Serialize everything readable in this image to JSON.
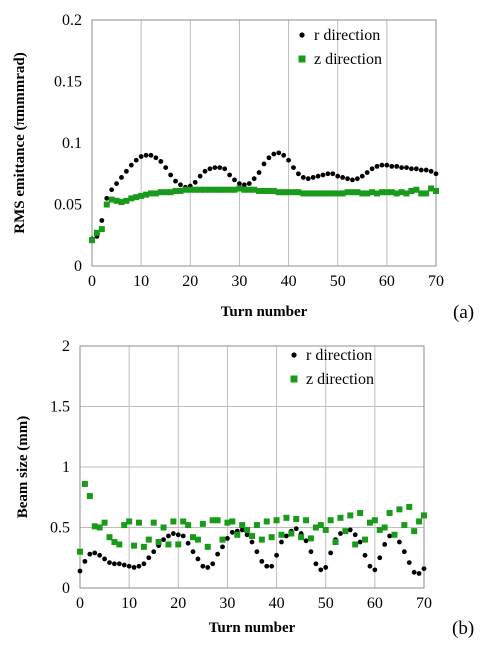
{
  "chart_data": [
    {
      "type": "scatter",
      "panel_label": "(a)",
      "xlabel": "Turn number",
      "ylabel": "RMS emittance (πmmmrad)",
      "xlim": [
        0,
        70
      ],
      "ylim": [
        0,
        0.2
      ],
      "x_ticks": [
        "0",
        "10",
        "20",
        "30",
        "40",
        "50",
        "60",
        "70"
      ],
      "y_ticks": [
        "0",
        "0.05",
        "0.1",
        "0.15",
        "0.2"
      ],
      "grid": "vertical",
      "legend_position": "top-right",
      "series": [
        {
          "name": "r direction",
          "marker": "circle",
          "color": "#000000",
          "x": [
            0,
            1,
            2,
            3,
            4,
            5,
            6,
            7,
            8,
            9,
            10,
            11,
            12,
            13,
            14,
            15,
            16,
            17,
            18,
            19,
            20,
            21,
            22,
            23,
            24,
            25,
            26,
            27,
            28,
            29,
            30,
            31,
            32,
            33,
            34,
            35,
            36,
            37,
            38,
            39,
            40,
            41,
            42,
            43,
            44,
            45,
            46,
            47,
            48,
            49,
            50,
            51,
            52,
            53,
            54,
            55,
            56,
            57,
            58,
            59,
            60,
            61,
            62,
            63,
            64,
            65,
            66,
            67,
            68,
            69,
            70
          ],
          "y": [
            0.022,
            0.024,
            0.037,
            0.055,
            0.062,
            0.067,
            0.072,
            0.077,
            0.082,
            0.086,
            0.089,
            0.09,
            0.09,
            0.088,
            0.085,
            0.08,
            0.074,
            0.069,
            0.066,
            0.064,
            0.065,
            0.068,
            0.073,
            0.077,
            0.079,
            0.08,
            0.08,
            0.079,
            0.074,
            0.07,
            0.067,
            0.066,
            0.067,
            0.071,
            0.076,
            0.083,
            0.088,
            0.091,
            0.092,
            0.09,
            0.086,
            0.08,
            0.075,
            0.072,
            0.071,
            0.072,
            0.073,
            0.074,
            0.075,
            0.075,
            0.073,
            0.072,
            0.071,
            0.07,
            0.071,
            0.073,
            0.076,
            0.079,
            0.081,
            0.082,
            0.082,
            0.081,
            0.081,
            0.08,
            0.08,
            0.079,
            0.079,
            0.078,
            0.078,
            0.077,
            0.075
          ]
        },
        {
          "name": "z direction",
          "marker": "square",
          "color": "#1a9a1a",
          "x": [
            0,
            1,
            2,
            3,
            4,
            5,
            6,
            7,
            8,
            9,
            10,
            11,
            12,
            13,
            14,
            15,
            16,
            17,
            18,
            19,
            20,
            21,
            22,
            23,
            24,
            25,
            26,
            27,
            28,
            29,
            30,
            31,
            32,
            33,
            34,
            35,
            36,
            37,
            38,
            39,
            40,
            41,
            42,
            43,
            44,
            45,
            46,
            47,
            48,
            49,
            50,
            51,
            52,
            53,
            54,
            55,
            56,
            57,
            58,
            59,
            60,
            61,
            62,
            63,
            64,
            65,
            66,
            67,
            68,
            69,
            70
          ],
          "y": [
            0.021,
            0.027,
            0.03,
            0.05,
            0.054,
            0.053,
            0.052,
            0.053,
            0.055,
            0.056,
            0.057,
            0.058,
            0.059,
            0.059,
            0.06,
            0.06,
            0.06,
            0.061,
            0.061,
            0.062,
            0.062,
            0.062,
            0.062,
            0.062,
            0.062,
            0.062,
            0.062,
            0.062,
            0.062,
            0.062,
            0.063,
            0.062,
            0.062,
            0.062,
            0.061,
            0.061,
            0.061,
            0.061,
            0.06,
            0.06,
            0.06,
            0.06,
            0.06,
            0.059,
            0.059,
            0.059,
            0.059,
            0.059,
            0.059,
            0.059,
            0.059,
            0.059,
            0.06,
            0.06,
            0.06,
            0.059,
            0.059,
            0.06,
            0.059,
            0.06,
            0.06,
            0.06,
            0.059,
            0.06,
            0.059,
            0.061,
            0.062,
            0.059,
            0.059,
            0.063,
            0.061
          ]
        }
      ]
    },
    {
      "type": "scatter",
      "panel_label": "(b)",
      "xlabel": "Turn number",
      "ylabel": "Beam size (mm)",
      "xlim": [
        0,
        70
      ],
      "ylim": [
        0,
        2
      ],
      "x_ticks": [
        "0",
        "10",
        "20",
        "30",
        "40",
        "50",
        "60",
        "70"
      ],
      "y_ticks": [
        "0",
        "0.5",
        "1",
        "1.5",
        "2"
      ],
      "grid": "both",
      "legend_position": "top-right",
      "series": [
        {
          "name": "r direction",
          "marker": "circle",
          "color": "#000000",
          "x": [
            0,
            1,
            2,
            3,
            4,
            5,
            6,
            7,
            8,
            9,
            10,
            11,
            12,
            13,
            14,
            15,
            16,
            17,
            18,
            19,
            20,
            21,
            22,
            23,
            24,
            25,
            26,
            27,
            28,
            29,
            30,
            31,
            32,
            33,
            34,
            35,
            36,
            37,
            38,
            39,
            40,
            41,
            42,
            43,
            44,
            45,
            46,
            47,
            48,
            49,
            50,
            51,
            52,
            53,
            54,
            55,
            56,
            57,
            58,
            59,
            60,
            61,
            62,
            63,
            64,
            65,
            66,
            67,
            68,
            69,
            70
          ],
          "y": [
            0.14,
            0.22,
            0.28,
            0.29,
            0.27,
            0.24,
            0.21,
            0.2,
            0.2,
            0.19,
            0.18,
            0.17,
            0.18,
            0.2,
            0.25,
            0.3,
            0.35,
            0.4,
            0.43,
            0.45,
            0.44,
            0.43,
            0.37,
            0.3,
            0.24,
            0.18,
            0.17,
            0.2,
            0.28,
            0.34,
            0.41,
            0.46,
            0.47,
            0.48,
            0.44,
            0.38,
            0.3,
            0.22,
            0.18,
            0.18,
            0.27,
            0.38,
            0.43,
            0.47,
            0.49,
            0.45,
            0.39,
            0.3,
            0.2,
            0.15,
            0.17,
            0.29,
            0.4,
            0.45,
            0.47,
            0.48,
            0.44,
            0.38,
            0.27,
            0.18,
            0.15,
            0.25,
            0.36,
            0.43,
            0.44,
            0.38,
            0.3,
            0.21,
            0.13,
            0.12,
            0.16
          ]
        },
        {
          "name": "z direction",
          "marker": "square",
          "color": "#1a9a1a",
          "x": [
            0,
            1,
            2,
            3,
            4,
            5,
            6,
            7,
            8,
            9,
            10,
            11,
            12,
            13,
            14,
            15,
            16,
            17,
            18,
            19,
            20,
            21,
            22,
            23,
            24,
            25,
            26,
            27,
            28,
            29,
            30,
            31,
            32,
            33,
            34,
            35,
            36,
            37,
            38,
            39,
            40,
            41,
            42,
            43,
            44,
            45,
            46,
            47,
            48,
            49,
            50,
            51,
            52,
            53,
            54,
            55,
            56,
            57,
            58,
            59,
            60,
            61,
            62,
            63,
            64,
            65,
            66,
            67,
            68,
            69,
            70
          ],
          "y": [
            0.3,
            0.86,
            0.76,
            0.51,
            0.5,
            0.54,
            0.42,
            0.38,
            0.36,
            0.52,
            0.55,
            0.35,
            0.54,
            0.34,
            0.4,
            0.54,
            0.38,
            0.5,
            0.36,
            0.55,
            0.36,
            0.55,
            0.52,
            0.42,
            0.4,
            0.53,
            0.34,
            0.56,
            0.56,
            0.4,
            0.54,
            0.55,
            0.44,
            0.52,
            0.48,
            0.43,
            0.52,
            0.4,
            0.55,
            0.42,
            0.56,
            0.44,
            0.58,
            0.45,
            0.57,
            0.42,
            0.56,
            0.41,
            0.5,
            0.52,
            0.48,
            0.56,
            0.38,
            0.58,
            0.47,
            0.6,
            0.36,
            0.62,
            0.4,
            0.54,
            0.56,
            0.48,
            0.5,
            0.62,
            0.44,
            0.65,
            0.52,
            0.67,
            0.47,
            0.55,
            0.6
          ]
        }
      ]
    }
  ]
}
